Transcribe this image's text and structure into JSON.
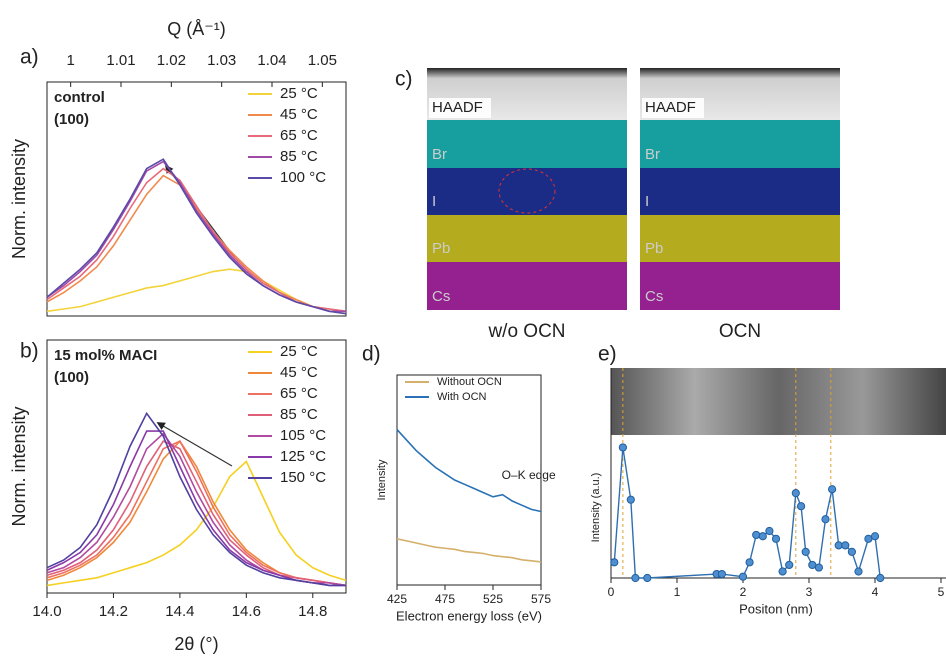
{
  "chart_data": [
    {
      "type": "line",
      "label": "a)",
      "sample": "control",
      "plane": "(100)",
      "ylabel": "Norm. intensity",
      "x2label": "Q (Å⁻¹)",
      "x": [
        14.0,
        14.05,
        14.1,
        14.15,
        14.2,
        14.25,
        14.3,
        14.35,
        14.4,
        14.45,
        14.5,
        14.55,
        14.6,
        14.65,
        14.7,
        14.75,
        14.8,
        14.85,
        14.9
      ],
      "xlim": [
        14.0,
        14.9
      ],
      "ylim": [
        0,
        1
      ],
      "x2lim": [
        0.9953,
        1.0547
      ],
      "x2ticks": [
        1,
        1.01,
        1.02,
        1.03,
        1.04,
        1.05
      ],
      "legend": "upper right",
      "series": [
        {
          "name": "25 °C",
          "color": "#f2d43a",
          "values": [
            0.02,
            0.03,
            0.04,
            0.06,
            0.08,
            0.1,
            0.12,
            0.13,
            0.15,
            0.17,
            0.19,
            0.2,
            0.19,
            0.15,
            0.11,
            0.07,
            0.04,
            0.02,
            0.02
          ]
        },
        {
          "name": "45 °C",
          "color": "#f08a4b",
          "values": [
            0.06,
            0.1,
            0.15,
            0.21,
            0.3,
            0.41,
            0.52,
            0.6,
            0.56,
            0.46,
            0.36,
            0.28,
            0.21,
            0.15,
            0.1,
            0.07,
            0.04,
            0.03,
            0.02
          ]
        },
        {
          "name": "65 °C",
          "color": "#e76a7a",
          "values": [
            0.07,
            0.12,
            0.17,
            0.24,
            0.34,
            0.46,
            0.57,
            0.63,
            0.58,
            0.47,
            0.36,
            0.27,
            0.2,
            0.14,
            0.1,
            0.06,
            0.04,
            0.03,
            0.02
          ]
        },
        {
          "name": "85 °C",
          "color": "#a04aa8",
          "values": [
            0.08,
            0.13,
            0.19,
            0.26,
            0.37,
            0.49,
            0.62,
            0.66,
            0.57,
            0.45,
            0.35,
            0.26,
            0.19,
            0.13,
            0.09,
            0.06,
            0.04,
            0.02,
            0.02
          ]
        },
        {
          "name": "100 °C",
          "color": "#5b4aa8",
          "values": [
            0.08,
            0.14,
            0.2,
            0.27,
            0.38,
            0.5,
            0.63,
            0.67,
            0.56,
            0.44,
            0.34,
            0.25,
            0.18,
            0.13,
            0.09,
            0.06,
            0.04,
            0.02,
            0.01
          ]
        }
      ]
    },
    {
      "type": "line",
      "label": "b)",
      "sample": "15 mol% MACI",
      "plane": "(100)",
      "ylabel": "Norm. intensity",
      "xlabel": "2θ (°)",
      "x": [
        14.0,
        14.05,
        14.1,
        14.15,
        14.2,
        14.25,
        14.3,
        14.35,
        14.4,
        14.45,
        14.5,
        14.55,
        14.6,
        14.65,
        14.7,
        14.75,
        14.8,
        14.85,
        14.9
      ],
      "xlim": [
        14.0,
        14.9
      ],
      "ylim": [
        0,
        1
      ],
      "xticks": [
        {
          "value": 14.0,
          "label": "14.0"
        },
        14.2,
        14.4,
        14.6,
        14.8
      ],
      "legend": "upper right",
      "series": [
        {
          "name": "25 °C",
          "color": "#f5d020",
          "values": [
            0.03,
            0.04,
            0.05,
            0.06,
            0.08,
            0.1,
            0.12,
            0.15,
            0.19,
            0.25,
            0.34,
            0.46,
            0.52,
            0.38,
            0.24,
            0.15,
            0.1,
            0.07,
            0.05
          ]
        },
        {
          "name": "45 °C",
          "color": "#f0883a",
          "values": [
            0.05,
            0.07,
            0.1,
            0.14,
            0.2,
            0.28,
            0.4,
            0.53,
            0.6,
            0.5,
            0.36,
            0.25,
            0.17,
            0.12,
            0.08,
            0.06,
            0.05,
            0.04,
            0.03
          ]
        },
        {
          "name": "65 °C",
          "color": "#ee7060",
          "values": [
            0.06,
            0.08,
            0.11,
            0.15,
            0.22,
            0.31,
            0.44,
            0.57,
            0.6,
            0.48,
            0.34,
            0.23,
            0.16,
            0.11,
            0.08,
            0.06,
            0.05,
            0.04,
            0.03
          ]
        },
        {
          "name": "85 °C",
          "color": "#e0607a",
          "values": [
            0.07,
            0.09,
            0.12,
            0.17,
            0.25,
            0.36,
            0.5,
            0.6,
            0.57,
            0.44,
            0.31,
            0.21,
            0.15,
            0.1,
            0.07,
            0.06,
            0.05,
            0.04,
            0.03
          ]
        },
        {
          "name": "105 °C",
          "color": "#b04aa0",
          "values": [
            0.08,
            0.1,
            0.14,
            0.2,
            0.3,
            0.42,
            0.57,
            0.63,
            0.54,
            0.4,
            0.28,
            0.19,
            0.13,
            0.09,
            0.07,
            0.05,
            0.04,
            0.04,
            0.03
          ]
        },
        {
          "name": "125 °C",
          "color": "#8a3aa8",
          "values": [
            0.09,
            0.12,
            0.16,
            0.23,
            0.35,
            0.5,
            0.64,
            0.64,
            0.5,
            0.36,
            0.25,
            0.17,
            0.12,
            0.09,
            0.07,
            0.05,
            0.04,
            0.03,
            0.03
          ]
        },
        {
          "name": "150 °C",
          "color": "#5040a0",
          "values": [
            0.1,
            0.13,
            0.18,
            0.27,
            0.41,
            0.58,
            0.71,
            0.62,
            0.46,
            0.33,
            0.23,
            0.16,
            0.11,
            0.08,
            0.06,
            0.05,
            0.04,
            0.03,
            0.03
          ]
        }
      ]
    },
    {
      "type": "line",
      "label": "d)",
      "ylabel": "Intensity",
      "xlabel": "Electron energy loss (eV)",
      "annotation": "O–K edge",
      "x": [
        425,
        435,
        445,
        455,
        465,
        475,
        485,
        495,
        505,
        515,
        525,
        535,
        545,
        555,
        565,
        575
      ],
      "xlim": [
        425,
        575
      ],
      "ylim": [
        0,
        1
      ],
      "xticks": [
        425,
        475,
        525,
        575
      ],
      "legend": "upper left",
      "series": [
        {
          "name": "Without OCN",
          "color": "#d4b06a",
          "values": [
            0.22,
            0.21,
            0.2,
            0.19,
            0.18,
            0.175,
            0.17,
            0.16,
            0.155,
            0.15,
            0.14,
            0.135,
            0.13,
            0.12,
            0.115,
            0.11
          ]
        },
        {
          "name": "With OCN",
          "color": "#2a72b5",
          "values": [
            0.74,
            0.69,
            0.64,
            0.6,
            0.56,
            0.53,
            0.5,
            0.48,
            0.46,
            0.44,
            0.42,
            0.43,
            0.4,
            0.38,
            0.36,
            0.35
          ]
        }
      ]
    },
    {
      "type": "line",
      "label": "e)",
      "ylabel": "Intensity (a.u.)",
      "xlabel": "Positon (nm)",
      "markers": true,
      "color": "#2f6fb0",
      "x": [
        0.05,
        0.18,
        0.3,
        0.37,
        0.55,
        1.6,
        1.68,
        2.0,
        2.1,
        2.2,
        2.3,
        2.4,
        2.5,
        2.6,
        2.7,
        2.8,
        2.88,
        2.95,
        3.05,
        3.15,
        3.25,
        3.35,
        3.45,
        3.55,
        3.65,
        3.75,
        3.9,
        4.0,
        4.08
      ],
      "values": [
        0.12,
        1.0,
        0.6,
        0,
        0,
        0.03,
        0.03,
        0.01,
        0.12,
        0.33,
        0.32,
        0.36,
        0.3,
        0.05,
        0.1,
        0.65,
        0.55,
        0.2,
        0.1,
        0.08,
        0.45,
        0.68,
        0.25,
        0.25,
        0.2,
        0.05,
        0.3,
        0.32,
        0
      ],
      "xlim": [
        0,
        5
      ],
      "ylim": [
        0,
        1.08
      ],
      "xticks": [
        0,
        1,
        2,
        3,
        4,
        5
      ],
      "vlines": [
        0.18,
        2.8,
        3.33
      ]
    }
  ],
  "eds_maps": {
    "label": "c)",
    "columns": [
      {
        "title": "w/o OCN",
        "layers": [
          "HAADF",
          "Br",
          "I",
          "Pb",
          "Cs"
        ]
      },
      {
        "title": "OCN",
        "layers": [
          "HAADF",
          "Br",
          "I",
          "Pb",
          "Cs"
        ]
      }
    ]
  }
}
